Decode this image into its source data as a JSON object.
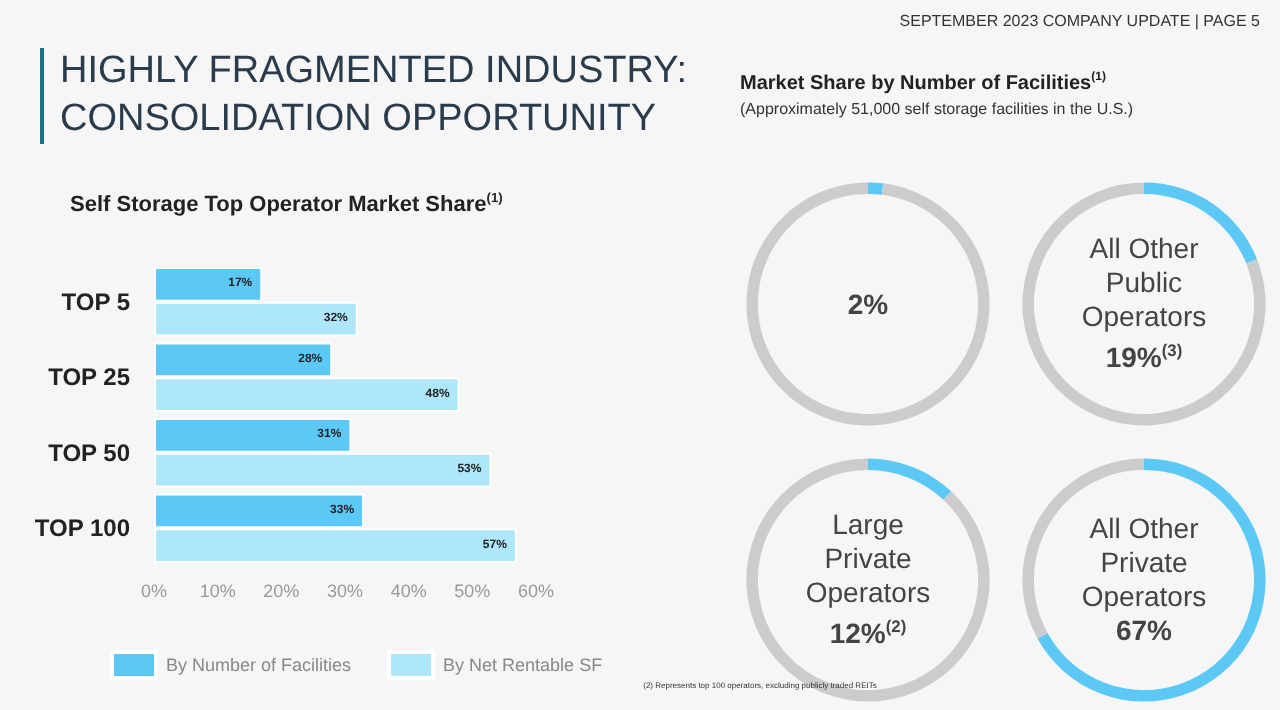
{
  "chart_data": [
    {
      "type": "bar",
      "title": "Self Storage Top Operator Market Share$^{(1)}$",
      "orientation": "horizontal",
      "categories": [
        "TOP 5",
        "TOP 25",
        "TOP 50",
        "TOP 100"
      ],
      "series": [
        {
          "name": "By Number of Facilities",
          "color": "#5bc8f5",
          "values": [
            17,
            28,
            31,
            33
          ],
          "value_labels": [
            "17%",
            "28%",
            "31%",
            "33%"
          ]
        },
        {
          "name": "By Net Rentable SF",
          "color": "#aee6fa",
          "values": [
            32,
            48,
            53,
            57
          ],
          "value_labels": [
            "32%",
            "48%",
            "53%",
            "57%"
          ]
        }
      ],
      "xlim": [
        0,
        60
      ],
      "xticks": [
        {
          "value": 0,
          "label": "0%"
        },
        {
          "value": 10,
          "label": "10%"
        },
        {
          "value": 20,
          "label": "20%"
        },
        {
          "value": 30,
          "label": "30%"
        },
        {
          "value": 40,
          "label": "40%"
        },
        {
          "value": 50,
          "label": "50%"
        },
        {
          "value": 60,
          "label": "60%"
        }
      ],
      "legend": "bottom",
      "grid": false,
      "annotations": [
        "SEPTEMBER 2023 COMPANY UPDATE | PAGE 5",
        "HIGHLY FRAGMENTED INDUSTRY: CONSOLIDATION OPPORTUNITY",
        "(2) Represents top 100 operators, excluding publicly traded REITs"
      ]
    },
    {
      "type": "donut",
      "title": "Market Share by Number of Facilities$^{(1)}$",
      "subtitle": "(Approximately 51,000 self storage facilities in the U.S.)",
      "categories": [
        null,
        null
      ],
      "values": [
        2,
        98
      ],
      "colors": [
        "#5bc8f5",
        "#cccccc"
      ],
      "value_labels": [
        "2%",
        null
      ]
    },
    {
      "type": "donut",
      "categories": [
        "All Other Public Operators",
        null
      ],
      "values": [
        19,
        81
      ],
      "colors": [
        "#5bc8f5",
        "#cccccc"
      ],
      "value_labels": [
        "19%$^{(3)}$",
        null
      ]
    },
    {
      "type": "donut",
      "categories": [
        "Large Private Operators",
        null
      ],
      "values": [
        12,
        88
      ],
      "colors": [
        "#5bc8f5",
        "#cccccc"
      ],
      "value_labels": [
        "12%$^{(2)}$",
        null
      ]
    },
    {
      "type": "donut",
      "categories": [
        "All Other Private Operators",
        null
      ],
      "values": [
        67,
        33
      ],
      "colors": [
        "#5bc8f5",
        "#cccccc"
      ],
      "value_labels": [
        "67%",
        null
      ]
    }
  ]
}
